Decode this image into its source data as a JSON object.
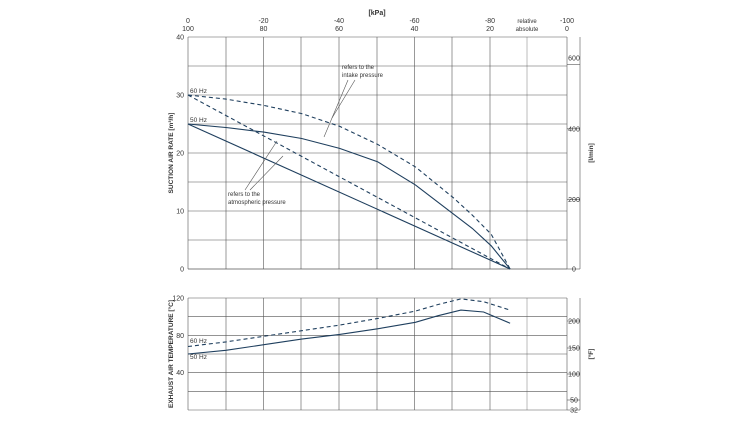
{
  "colors": {
    "curve": "#1f3f5e",
    "grid": "#555555",
    "text": "#333333"
  },
  "chart_data": [
    {
      "type": "line",
      "name": "suction-air-rate",
      "x_unit_label": "[kPa]",
      "x_top_ticks": [
        "0",
        "-20",
        "-40",
        "-60",
        "-80",
        "relative",
        "-100"
      ],
      "x_second_ticks": [
        "100",
        "80",
        "60",
        "40",
        "20",
        "absolute",
        "0"
      ],
      "xlim": [
        0,
        100
      ],
      "ylabel_left": "SUCTION AIR RATE  [m³/h]",
      "ylabel_right": "[l/min]",
      "ylim": [
        0,
        40
      ],
      "y_left_ticks": [
        "0",
        "10",
        "20",
        "30",
        "40"
      ],
      "y_right_ticks": [
        "0",
        "200",
        "400",
        "600"
      ],
      "annotations": [
        {
          "label": "50 Hz"
        },
        {
          "label": "60 Hz"
        },
        {
          "lines": [
            "refers to the",
            "intake pressure"
          ]
        },
        {
          "lines": [
            "refers to the",
            "atmospheric pressure"
          ]
        }
      ],
      "series": [
        {
          "name": "50 Hz – refers to the intake pressure",
          "style": "solid",
          "x": [
            0,
            10,
            20,
            30,
            40,
            50,
            60,
            70,
            75,
            80,
            85
          ],
          "y": [
            25,
            24.4,
            23.6,
            22.5,
            20.8,
            18.5,
            14.5,
            9.5,
            7,
            4,
            0
          ]
        },
        {
          "name": "60 Hz – refers to the intake pressure",
          "style": "dashed",
          "x": [
            0,
            10,
            20,
            30,
            40,
            50,
            60,
            70,
            75,
            80,
            85
          ],
          "y": [
            30,
            29.3,
            28.2,
            26.8,
            24.6,
            21.5,
            17.6,
            12.3,
            9.3,
            6,
            0
          ]
        },
        {
          "name": "50 Hz – refers to the atmospheric pressure",
          "style": "solid",
          "x": [
            0,
            85
          ],
          "y": [
            25,
            0
          ]
        },
        {
          "name": "60 Hz – refers to the atmospheric pressure",
          "style": "dashed",
          "x": [
            0,
            85
          ],
          "y": [
            30,
            0
          ]
        }
      ]
    },
    {
      "type": "line",
      "name": "exhaust-air-temperature",
      "xlim": [
        0,
        100
      ],
      "ylabel_left": "EXHAUST AIR TEMPERATURE  [°C]",
      "ylabel_right": "[°F]",
      "ylim": [
        0,
        120
      ],
      "y_left_ticks": [
        "40",
        "80",
        "120"
      ],
      "y_right_ticks": [
        "32",
        "50",
        "100",
        "150",
        "200"
      ],
      "annotations": [
        {
          "label": "60 Hz"
        },
        {
          "label": "50 Hz"
        }
      ],
      "series": [
        {
          "name": "60 Hz",
          "style": "dashed",
          "x": [
            0,
            10,
            20,
            30,
            40,
            50,
            60,
            66,
            72,
            78,
            85
          ],
          "y": [
            68,
            73,
            79,
            85,
            91,
            98,
            106,
            113,
            119,
            116,
            107
          ]
        },
        {
          "name": "50 Hz",
          "style": "solid",
          "x": [
            0,
            10,
            20,
            30,
            40,
            50,
            60,
            66,
            72,
            78,
            85
          ],
          "y": [
            60,
            64,
            70,
            76,
            81,
            87,
            94,
            101,
            107,
            105,
            93
          ]
        }
      ]
    }
  ]
}
